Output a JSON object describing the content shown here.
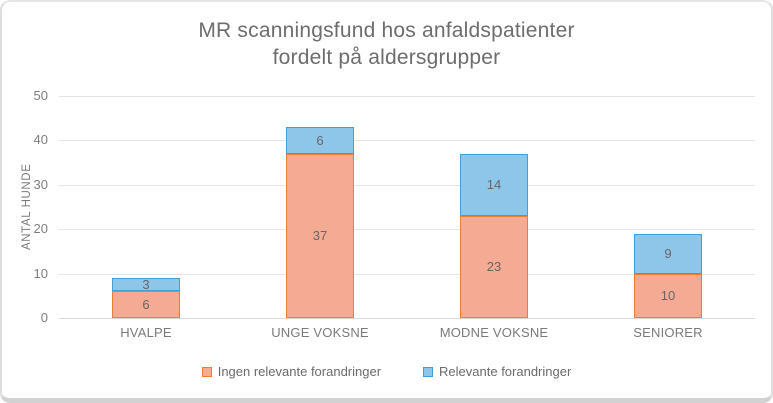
{
  "chart_data": {
    "type": "bar",
    "stacked": true,
    "title": "MR scanningsfund hos anfaldspatienter fordelt på aldersgrupper",
    "title_lines": [
      "MR scanningsfund hos anfaldspatienter",
      "fordelt på aldersgrupper"
    ],
    "ylabel": "ANTAL HUNDE",
    "xlabel": "",
    "categories": [
      "HVALPE",
      "UNGE VOKSNE",
      "MODNE VOKSNE",
      "SENIORER"
    ],
    "series": [
      {
        "name": "Ingen relevante forandringer",
        "values": [
          6,
          37,
          23,
          10
        ],
        "fill": "#F4AA93",
        "border": "#ED7D31"
      },
      {
        "name": "Relevante forandringer",
        "values": [
          3,
          6,
          14,
          9
        ],
        "fill": "#8EC6EA",
        "border": "#3FA0DC"
      }
    ],
    "ylim": [
      0,
      50
    ],
    "yticks": [
      0,
      10,
      20,
      30,
      40,
      50
    ],
    "grid": true,
    "legend_position": "bottom",
    "colors": {
      "gridline": "#E4E4E4",
      "axis_line": "#D9D9D9",
      "title_text": "#6D6D6D",
      "axis_text": "#7A7A7A",
      "value_label_text": "#666666",
      "legend_text": "#6B6B6B",
      "card_border": "#DEDEDE"
    }
  }
}
